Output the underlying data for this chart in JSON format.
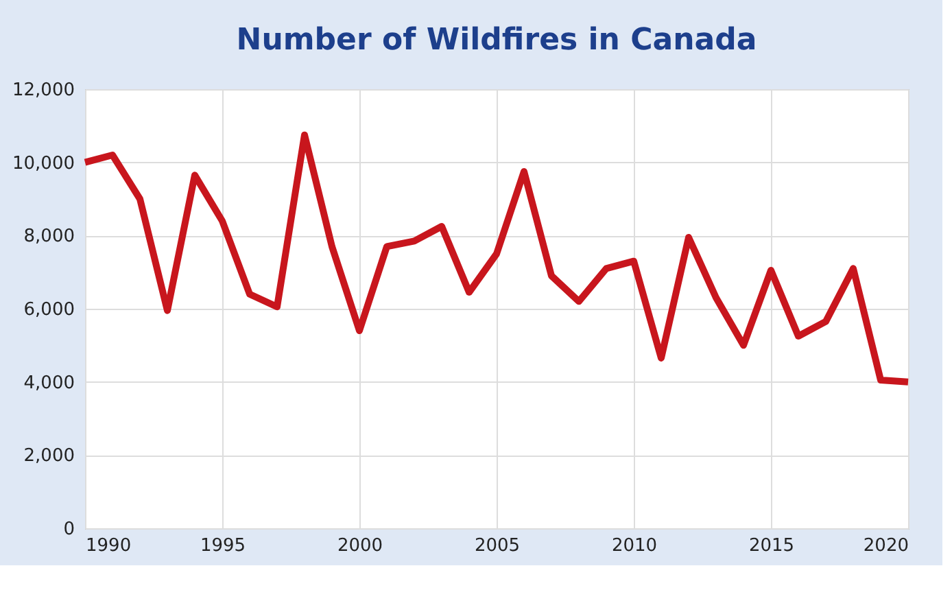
{
  "chart_data": {
    "type": "line",
    "title": "Number of Wildfires in Canada",
    "x": [
      1990,
      1991,
      1992,
      1993,
      1994,
      1995,
      1996,
      1997,
      1998,
      1999,
      2000,
      2001,
      2002,
      2003,
      2004,
      2005,
      2006,
      2007,
      2008,
      2009,
      2010,
      2011,
      2012,
      2013,
      2014,
      2015,
      2016,
      2017,
      2018,
      2019,
      2020
    ],
    "series": [
      {
        "color": "#c8161d",
        "values": [
          10000,
          10200,
          9000,
          5950,
          9650,
          8400,
          6400,
          6050,
          10750,
          7700,
          5400,
          7700,
          7850,
          8250,
          6450,
          7500,
          9750,
          6900,
          6200,
          7100,
          7300,
          4650,
          7950,
          6300,
          5000,
          7050,
          5250,
          5650,
          7100,
          4050,
          4000
        ]
      }
    ],
    "xlim": [
      1990,
      2020
    ],
    "xticks": [
      1990,
      1995,
      2000,
      2005,
      2010,
      2015,
      2020
    ],
    "ylim": [
      0,
      12000
    ],
    "yticks": [
      0,
      {
        "value": 2000,
        "label": "2,000"
      },
      {
        "value": 4000,
        "label": "4,000"
      },
      {
        "value": 6000,
        "label": "6,000"
      },
      {
        "value": 8000,
        "label": "8,000"
      },
      {
        "value": 10000,
        "label": "10,000"
      },
      {
        "value": 12000,
        "label": "12,000"
      }
    ],
    "grid": true,
    "marker": "none",
    "line_style": "solid"
  }
}
